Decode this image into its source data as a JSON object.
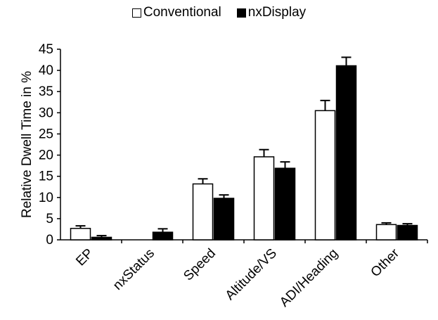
{
  "chart_data": {
    "type": "bar",
    "title": "",
    "xlabel": "",
    "ylabel": "Relative Dwell Time in %",
    "ylim": [
      0,
      45
    ],
    "yticks": [
      0,
      5,
      10,
      15,
      20,
      25,
      30,
      35,
      40,
      45
    ],
    "grid": false,
    "legend_position": "top-center",
    "categories": [
      "EP",
      "nxStatus",
      "Speed",
      "Altitude/VS",
      "ADI/Heading",
      "Other"
    ],
    "series": [
      {
        "name": "Conventional",
        "color": "#ffffff",
        "values": [
          2.7,
          0,
          13.2,
          19.6,
          30.5,
          3.6
        ],
        "error": [
          0.6,
          0,
          1.2,
          1.7,
          2.4,
          0.4
        ]
      },
      {
        "name": "nxDisplay",
        "color": "#000000",
        "values": [
          0.6,
          1.8,
          9.8,
          16.9,
          41.1,
          3.4
        ],
        "error": [
          0.4,
          0.8,
          0.8,
          1.5,
          2.0,
          0.4
        ]
      }
    ]
  }
}
